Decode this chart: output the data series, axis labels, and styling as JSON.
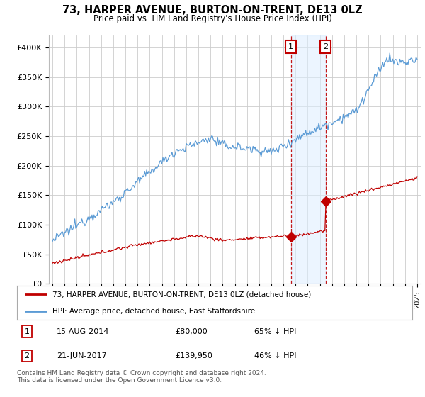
{
  "title": "73, HARPER AVENUE, BURTON-ON-TRENT, DE13 0LZ",
  "subtitle": "Price paid vs. HM Land Registry's House Price Index (HPI)",
  "hpi_color": "#5b9bd5",
  "price_color": "#c00000",
  "sale1_date_num": 2014.62,
  "sale1_price": 80000,
  "sale1_label": "15-AUG-2014",
  "sale1_price_label": "£80,000",
  "sale1_hpi_label": "65% ↓ HPI",
  "sale2_date_num": 2017.47,
  "sale2_price": 139950,
  "sale2_label": "21-JUN-2017",
  "sale2_price_label": "£139,950",
  "sale2_hpi_label": "46% ↓ HPI",
  "legend_line1": "73, HARPER AVENUE, BURTON-ON-TRENT, DE13 0LZ (detached house)",
  "legend_line2": "HPI: Average price, detached house, East Staffordshire",
  "footer": "Contains HM Land Registry data © Crown copyright and database right 2024.\nThis data is licensed under the Open Government Licence v3.0.",
  "background_color": "#ffffff",
  "grid_color": "#cccccc",
  "shade_color": "#ddeeff",
  "ylim": [
    0,
    420000
  ],
  "yticks": [
    0,
    50000,
    100000,
    150000,
    200000,
    250000,
    300000,
    350000,
    400000
  ],
  "ytick_labels": [
    "£0",
    "£50K",
    "£100K",
    "£150K",
    "£200K",
    "£250K",
    "£300K",
    "£350K",
    "£400K"
  ],
  "xmin": 1994.7,
  "xmax": 2025.3
}
